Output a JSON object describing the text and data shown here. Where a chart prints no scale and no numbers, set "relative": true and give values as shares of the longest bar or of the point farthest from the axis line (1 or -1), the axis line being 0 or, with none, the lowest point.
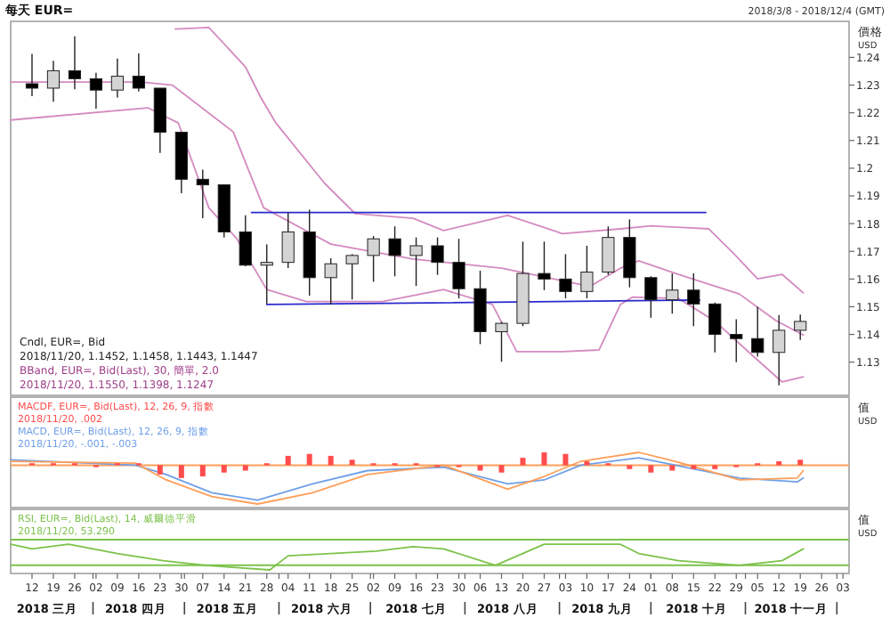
{
  "chart_data": [
    {
      "type": "candlestick",
      "title": "每天 EUR=",
      "subtitle": "2018/3/8 - 2018/12/4 (GMT)",
      "ylabel": "價格 USD",
      "xlim": [
        "2018-03-05",
        "2018-12-05"
      ],
      "ylim": [
        1.118,
        1.253
      ],
      "yticks": [
        1.13,
        1.14,
        1.15,
        1.16,
        1.17,
        1.18,
        1.19,
        1.2,
        1.21,
        1.22,
        1.23,
        1.24
      ],
      "tick_labels": "y",
      "x": [
        "2018-03-12",
        "2018-03-19",
        "2018-03-26",
        "2018-04-02",
        "2018-04-09",
        "2018-04-16",
        "2018-04-23",
        "2018-04-30",
        "2018-05-07",
        "2018-05-14",
        "2018-05-21",
        "2018-05-28",
        "2018-06-04",
        "2018-06-11",
        "2018-06-18",
        "2018-06-25",
        "2018-07-02",
        "2018-07-09",
        "2018-07-16",
        "2018-07-23",
        "2018-07-30",
        "2018-08-06",
        "2018-08-13",
        "2018-08-20",
        "2018-08-27",
        "2018-09-03",
        "2018-09-10",
        "2018-09-17",
        "2018-09-24",
        "2018-10-01",
        "2018-10-08",
        "2018-10-15",
        "2018-10-22",
        "2018-10-29",
        "2018-11-05",
        "2018-11-12",
        "2018-11-19"
      ],
      "ohlc": [
        [
          1.2305,
          1.2413,
          1.226,
          1.2289
        ],
        [
          1.2289,
          1.2388,
          1.224,
          1.2352
        ],
        [
          1.2352,
          1.2476,
          1.2285,
          1.2323
        ],
        [
          1.2323,
          1.2344,
          1.2215,
          1.2282
        ],
        [
          1.2282,
          1.2396,
          1.2255,
          1.2332
        ],
        [
          1.2332,
          1.2414,
          1.2277,
          1.2289
        ],
        [
          1.2289,
          1.2289,
          1.2055,
          1.213
        ],
        [
          1.213,
          1.213,
          1.191,
          1.196
        ],
        [
          1.196,
          1.1995,
          1.182,
          1.194
        ],
        [
          1.194,
          1.194,
          1.175,
          1.177
        ],
        [
          1.177,
          1.183,
          1.1646,
          1.165
        ],
        [
          1.165,
          1.1725,
          1.151,
          1.166
        ],
        [
          1.166,
          1.184,
          1.164,
          1.177
        ],
        [
          1.177,
          1.185,
          1.154,
          1.1605
        ],
        [
          1.1605,
          1.1675,
          1.1508,
          1.1655
        ],
        [
          1.1655,
          1.169,
          1.1526,
          1.1685
        ],
        [
          1.1685,
          1.1755,
          1.159,
          1.1745
        ],
        [
          1.1745,
          1.179,
          1.161,
          1.1685
        ],
        [
          1.1685,
          1.175,
          1.1575,
          1.172
        ],
        [
          1.172,
          1.175,
          1.1615,
          1.166
        ],
        [
          1.166,
          1.1745,
          1.153,
          1.1565
        ],
        [
          1.1565,
          1.163,
          1.1365,
          1.141
        ],
        [
          1.141,
          1.1445,
          1.1301,
          1.144
        ],
        [
          1.144,
          1.1735,
          1.143,
          1.162
        ],
        [
          1.162,
          1.1735,
          1.156,
          1.16
        ],
        [
          1.16,
          1.169,
          1.153,
          1.1555
        ],
        [
          1.1555,
          1.172,
          1.153,
          1.1625
        ],
        [
          1.1625,
          1.179,
          1.1615,
          1.175
        ],
        [
          1.175,
          1.1815,
          1.157,
          1.1605
        ],
        [
          1.1605,
          1.161,
          1.146,
          1.1525
        ],
        [
          1.1525,
          1.162,
          1.1475,
          1.156
        ],
        [
          1.156,
          1.162,
          1.143,
          1.151
        ],
        [
          1.151,
          1.1515,
          1.1335,
          1.14
        ],
        [
          1.14,
          1.1455,
          1.13,
          1.1385
        ],
        [
          1.1385,
          1.15,
          1.132,
          1.1335
        ],
        [
          1.1335,
          1.147,
          1.1216,
          1.1415
        ],
        [
          1.1415,
          1.1472,
          1.138,
          1.1447
        ]
      ],
      "series": [
        {
          "type": "line",
          "color": "#d48ac0",
          "x": [
            "2018-04-28",
            "2018-05-09",
            "2018-05-21",
            "2018-05-26",
            "2018-05-31",
            "2018-06-16",
            "2018-06-26",
            "2018-07-15",
            "2018-07-25",
            "2018-08-15",
            "2018-09-02",
            "2018-09-21",
            "2018-10-01",
            "2018-10-20",
            "2018-10-28",
            "2018-11-05",
            "2018-11-13",
            "2018-11-20"
          ],
          "values": [
            1.2502,
            1.2508,
            1.2366,
            1.2256,
            1.2163,
            1.1945,
            1.1836,
            1.1819,
            1.1775,
            1.183,
            1.1764,
            1.1781,
            1.1792,
            1.1781,
            1.1694,
            1.1601,
            1.1617,
            1.155
          ]
        },
        {
          "type": "line",
          "color": "#d48ac0",
          "x": [
            "2018-03-05",
            "2018-04-17",
            "2018-04-27",
            "2018-05-17",
            "2018-05-27",
            "2018-06-18",
            "2018-07-15",
            "2018-08-13",
            "2018-09-11",
            "2018-09-21",
            "2018-09-27",
            "2018-10-10",
            "2018-10-30",
            "2018-11-11",
            "2018-11-20"
          ],
          "values": [
            1.2311,
            1.2311,
            1.23,
            1.2131,
            1.1857,
            1.1726,
            1.1672,
            1.1639,
            1.1573,
            1.1639,
            1.1666,
            1.1617,
            1.1546,
            1.145,
            1.1398
          ]
        },
        {
          "type": "line",
          "color": "#d48ac0",
          "x": [
            "2018-03-05",
            "2018-04-19",
            "2018-04-29",
            "2018-05-09",
            "2018-05-18",
            "2018-05-28",
            "2018-06-10",
            "2018-07-05",
            "2018-07-25",
            "2018-08-10",
            "2018-08-18",
            "2018-09-02",
            "2018-09-14",
            "2018-09-21",
            "2018-09-25",
            "2018-10-10",
            "2018-10-22",
            "2018-11-03",
            "2018-11-13",
            "2018-11-20"
          ],
          "values": [
            1.2174,
            1.2218,
            1.2163,
            1.1857,
            1.1748,
            1.1562,
            1.1519,
            1.1519,
            1.1562,
            1.1508,
            1.1338,
            1.1338,
            1.1344,
            1.1508,
            1.1535,
            1.153,
            1.1448,
            1.1327,
            1.1229,
            1.1247
          ]
        },
        {
          "type": "line",
          "color": "#2a2acc",
          "x": [
            "2018-05-23",
            "2018-10-19"
          ],
          "values": [
            1.184,
            1.184
          ]
        },
        {
          "type": "line",
          "color": "#2a2acc",
          "x": [
            "2018-05-28",
            "2018-10-17"
          ],
          "values": [
            1.1508,
            1.1524
          ]
        }
      ],
      "annotations": [
        "Cndl, EUR=, Bid",
        "2018/11/20, 1.1452, 1.1458, 1.1443, 1.1447",
        "BBand, EUR=, Bid(Last), 30, 簡單, 2.0",
        "2018/11/20, 1.1550, 1.1398, 1.1247"
      ]
    },
    {
      "type": "line",
      "relative": true,
      "ylabel": "值 USD",
      "xlim": [
        "2018-03-05",
        "2018-12-05"
      ],
      "tick_labels": false,
      "ref_lines": [
        {
          "axis": "y",
          "value": 0,
          "color": "#ff9f5a"
        }
      ],
      "series": [
        {
          "type": "bar",
          "color": "#ff4d4d",
          "x": [
            "2018-03-12",
            "2018-03-19",
            "2018-03-26",
            "2018-04-02",
            "2018-04-09",
            "2018-04-16",
            "2018-04-23",
            "2018-04-30",
            "2018-05-07",
            "2018-05-14",
            "2018-05-21",
            "2018-05-28",
            "2018-06-04",
            "2018-06-11",
            "2018-06-18",
            "2018-06-25",
            "2018-07-02",
            "2018-07-09",
            "2018-07-16",
            "2018-07-23",
            "2018-07-30",
            "2018-08-06",
            "2018-08-13",
            "2018-08-20",
            "2018-08-27",
            "2018-09-03",
            "2018-09-10",
            "2018-09-17",
            "2018-09-24",
            "2018-10-01",
            "2018-10-08",
            "2018-10-15",
            "2018-10-22",
            "2018-10-29",
            "2018-11-05",
            "2018-11-12",
            "2018-11-19"
          ],
          "values": [
            0.05,
            0.05,
            0.05,
            -0.05,
            0.05,
            0.05,
            -0.24,
            -0.33,
            -0.29,
            -0.19,
            -0.14,
            0.05,
            0.24,
            0.29,
            0.24,
            0.14,
            0.05,
            0.05,
            0.05,
            -0.05,
            -0.05,
            -0.14,
            -0.19,
            0.19,
            0.33,
            0.29,
            0.1,
            0.05,
            -0.1,
            -0.19,
            -0.14,
            -0.1,
            -0.1,
            -0.05,
            0.05,
            0.1,
            0.14
          ]
        },
        {
          "type": "line",
          "color": "#6fa0e8",
          "x": [
            "2018-03-05",
            "2018-04-15",
            "2018-04-25",
            "2018-05-10",
            "2018-05-25",
            "2018-06-12",
            "2018-06-30",
            "2018-07-25",
            "2018-08-15",
            "2018-08-27",
            "2018-09-08",
            "2018-09-27",
            "2018-10-09",
            "2018-10-30",
            "2018-11-18",
            "2018-11-20"
          ],
          "values": [
            0.14,
            0,
            -0.24,
            -0.71,
            -0.9,
            -0.48,
            -0.14,
            -0.05,
            -0.48,
            -0.38,
            0,
            0.19,
            0,
            -0.33,
            -0.43,
            -0.33
          ]
        },
        {
          "type": "line",
          "color": "#ff9f5a",
          "x": [
            "2018-03-05",
            "2018-04-15",
            "2018-04-25",
            "2018-05-10",
            "2018-05-25",
            "2018-06-12",
            "2018-06-30",
            "2018-07-25",
            "2018-08-15",
            "2018-08-27",
            "2018-09-08",
            "2018-09-27",
            "2018-10-09",
            "2018-10-30",
            "2018-11-18",
            "2018-11-20"
          ],
          "values": [
            0.1,
            0.05,
            -0.38,
            -0.81,
            -1,
            -0.71,
            -0.24,
            0,
            -0.62,
            -0.29,
            0.1,
            0.33,
            0.1,
            -0.38,
            -0.33,
            -0.14
          ]
        }
      ],
      "annotations": [
        "MACDF, EUR=, Bid(Last), 12, 26, 9, 指數",
        "2018/11/20, .002",
        "MACD, EUR=, Bid(Last), 12, 26, 9, 指數",
        "2018/11/20, -.001, -.003"
      ]
    },
    {
      "type": "line",
      "relative": true,
      "ylabel": "值 USD",
      "xlim": [
        "2018-03-05",
        "2018-12-05"
      ],
      "tick_labels": "x",
      "ref_lines": [
        {
          "axis": "y",
          "value": 1.18,
          "color": "#7cc24a"
        },
        {
          "axis": "y",
          "value": 0.18,
          "color": "#7cc24a"
        }
      ],
      "series": [
        {
          "type": "line",
          "color": "#7cc24a",
          "x": [
            "2018-03-05",
            "2018-03-12",
            "2018-03-24",
            "2018-04-09",
            "2018-04-24",
            "2018-05-08",
            "2018-05-18",
            "2018-05-29",
            "2018-06-04",
            "2018-06-18",
            "2018-07-03",
            "2018-07-15",
            "2018-07-25",
            "2018-08-11",
            "2018-08-27",
            "2018-09-21",
            "2018-09-27",
            "2018-10-10",
            "2018-10-30",
            "2018-11-13",
            "2018-11-20"
          ],
          "values": [
            1,
            0.82,
            1,
            0.64,
            0.36,
            0.18,
            0.09,
            0,
            0.55,
            0.64,
            0.73,
            0.91,
            0.82,
            0.18,
            1,
            1,
            0.64,
            0.36,
            0.18,
            0.36,
            0.82
          ]
        }
      ],
      "xticks": [
        {
          "value": "2018-03-12",
          "label": "12"
        },
        {
          "value": "2018-03-19",
          "label": "19"
        },
        {
          "value": "2018-03-26",
          "label": "26"
        },
        {
          "value": "2018-04-02",
          "label": "02"
        },
        {
          "value": "2018-04-09",
          "label": "09"
        },
        {
          "value": "2018-04-16",
          "label": "16"
        },
        {
          "value": "2018-04-23",
          "label": "23"
        },
        {
          "value": "2018-04-30",
          "label": "30"
        },
        {
          "value": "2018-05-07",
          "label": "07"
        },
        {
          "value": "2018-05-14",
          "label": "14"
        },
        {
          "value": "2018-05-21",
          "label": "21"
        },
        {
          "value": "2018-05-28",
          "label": "28"
        },
        {
          "value": "2018-06-04",
          "label": "04"
        },
        {
          "value": "2018-06-11",
          "label": "11"
        },
        {
          "value": "2018-06-18",
          "label": "18"
        },
        {
          "value": "2018-06-25",
          "label": "25"
        },
        {
          "value": "2018-07-02",
          "label": "02"
        },
        {
          "value": "2018-07-09",
          "label": "09"
        },
        {
          "value": "2018-07-16",
          "label": "16"
        },
        {
          "value": "2018-07-23",
          "label": "23"
        },
        {
          "value": "2018-07-30",
          "label": "30"
        },
        {
          "value": "2018-08-06",
          "label": "06"
        },
        {
          "value": "2018-08-13",
          "label": "13"
        },
        {
          "value": "2018-08-20",
          "label": "20"
        },
        {
          "value": "2018-08-27",
          "label": "27"
        },
        {
          "value": "2018-09-03",
          "label": "03"
        },
        {
          "value": "2018-09-10",
          "label": "10"
        },
        {
          "value": "2018-09-17",
          "label": "17"
        },
        {
          "value": "2018-09-24",
          "label": "24"
        },
        {
          "value": "2018-10-01",
          "label": "01"
        },
        {
          "value": "2018-10-08",
          "label": "08"
        },
        {
          "value": "2018-10-15",
          "label": "15"
        },
        {
          "value": "2018-10-22",
          "label": "22"
        },
        {
          "value": "2018-10-29",
          "label": "29"
        },
        {
          "value": "2018-11-05",
          "label": "05"
        },
        {
          "value": "2018-11-12",
          "label": "12"
        },
        {
          "value": "2018-11-19",
          "label": "19"
        },
        {
          "value": "2018-11-26",
          "label": "26"
        },
        {
          "value": "2018-12-03",
          "label": "03"
        }
      ],
      "x2lim": [
        "2018-03-05",
        "2018-12-05"
      ],
      "x2ticks": [
        {
          "value": "2018-03-17",
          "label": "2018 三月"
        },
        {
          "value": "2018-04-01",
          "label": null
        },
        {
          "value": "2018-04-15",
          "label": "2018 四月"
        },
        {
          "value": "2018-05-01",
          "label": null
        },
        {
          "value": "2018-05-15",
          "label": "2018 五月"
        },
        {
          "value": "2018-06-01",
          "label": null
        },
        {
          "value": "2018-06-15",
          "label": "2018 六月"
        },
        {
          "value": "2018-07-01",
          "label": null
        },
        {
          "value": "2018-07-16",
          "label": "2018 七月"
        },
        {
          "value": "2018-08-01",
          "label": null
        },
        {
          "value": "2018-08-15",
          "label": "2018 八月"
        },
        {
          "value": "2018-09-01",
          "label": null
        },
        {
          "value": "2018-09-15",
          "label": "2018 九月"
        },
        {
          "value": "2018-10-01",
          "label": null
        },
        {
          "value": "2018-10-16",
          "label": "2018 十月"
        },
        {
          "value": "2018-11-01",
          "label": null
        },
        {
          "value": "2018-11-16",
          "label": "2018 十一月"
        },
        {
          "value": "2018-12-01",
          "label": null
        }
      ],
      "annotations": [
        "RSI, EUR=, Bid(Last), 14, 威爾德平滑",
        "2018/11/20, 53.290"
      ]
    }
  ]
}
